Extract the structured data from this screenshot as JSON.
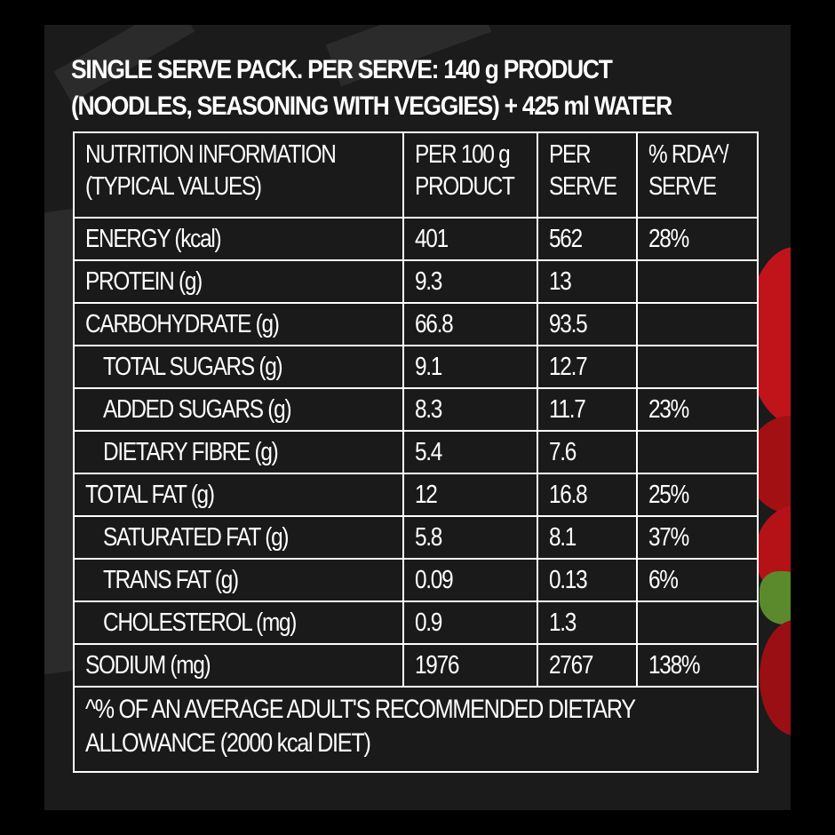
{
  "header": {
    "line1": "SINGLE SERVE PACK. PER SERVE: 140 g PRODUCT",
    "line2": "(NOODLES, SEASONING WITH VEGGIES) + 425 ml WATER"
  },
  "table": {
    "columns": [
      {
        "line1": "NUTRITION INFORMATION",
        "line2": "(TYPICAL VALUES)"
      },
      {
        "line1": "PER 100 g",
        "line2": "PRODUCT"
      },
      {
        "line1": "PER",
        "line2": "SERVE"
      },
      {
        "line1": "% RDA^/",
        "line2": "SERVE"
      }
    ],
    "rows": [
      {
        "name": "ENERGY (kcal)",
        "per100": "401",
        "serve": "562",
        "rda": "28%"
      },
      {
        "name": "PROTEIN (g)",
        "per100": "9.3",
        "serve": "13",
        "rda": ""
      },
      {
        "name": "CARBOHYDRATE (g)",
        "per100": "66.8",
        "serve": "93.5",
        "rda": ""
      },
      {
        "name": "TOTAL SUGARS (g)",
        "per100": "9.1",
        "serve": "12.7",
        "rda": ""
      },
      {
        "name": "ADDED SUGARS (g)",
        "per100": "8.3",
        "serve": "11.7",
        "rda": "23%"
      },
      {
        "name": "DIETARY FIBRE (g)",
        "per100": "5.4",
        "serve": "7.6",
        "rda": ""
      },
      {
        "name": "TOTAL FAT (g)",
        "per100": "12",
        "serve": "16.8",
        "rda": "25%"
      },
      {
        "name": "SATURATED FAT (g)",
        "per100": "5.8",
        "serve": "8.1",
        "rda": "37%"
      },
      {
        "name": "TRANS FAT (g)",
        "per100": "0.09",
        "serve": "0.13",
        "rda": "6%"
      },
      {
        "name": "CHOLESTEROL (mg)",
        "per100": "0.9",
        "serve": "1.3",
        "rda": ""
      },
      {
        "name": "SODIUM (mg)",
        "per100": "1976",
        "serve": "2767",
        "rda": "138%"
      }
    ],
    "footnote": {
      "line1": "^% OF AN AVERAGE ADULT'S RECOMMENDED DIETARY",
      "line2": "ALLOWANCE (2000 kcal DIET)"
    }
  },
  "colors": {
    "background": "#000000",
    "panel": "#1b1b1b",
    "text": "#ffffff",
    "tomato": "#c0141a",
    "leaf": "#5a8a2c"
  }
}
